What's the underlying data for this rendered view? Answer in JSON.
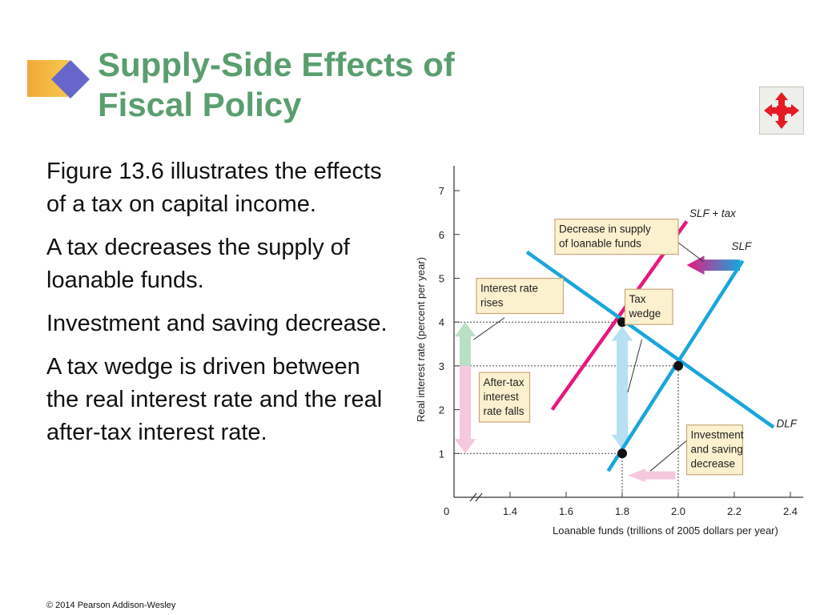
{
  "title_lines": [
    "Supply-Side Effects of",
    "Fiscal Policy"
  ],
  "bullets": [
    "Figure 13.6 illustrates the effects of a tax on capital income.",
    "A tax decreases the supply of loanable funds.",
    "Investment and saving decrease.",
    "A tax wedge is driven between the real interest rate and the real after-tax interest rate."
  ],
  "copyright": "© 2014 Pearson Addison-Wesley",
  "nav_icon": "four-way-arrows-icon",
  "colors": {
    "title": "#5a9e6f",
    "slf": "#19a6dc",
    "dlf": "#19a6dc",
    "slf_tax": "#e8177e",
    "annotation_fill": "#fbf1cf",
    "annotation_border": "#c9a77a",
    "up_arrow": "#b9dfc4",
    "down_arrow": "#f6c8dd",
    "wedge_arrow": "#b7e1f3",
    "icon_red": "#e41b23"
  },
  "chart_data": {
    "type": "line",
    "xlabel": "Loanable funds (trillions of 2005 dollars per year)",
    "ylabel": "Real interest rate (percent per year)",
    "xlim": [
      1.2,
      2.45
    ],
    "ylim": [
      0,
      7.3
    ],
    "origin_label": "0",
    "x_ticks": [
      1.4,
      1.6,
      1.8,
      2.0,
      2.2,
      2.4
    ],
    "x_tick_labels": [
      "1.4",
      "1.6",
      "1.8",
      "2.0",
      "2.2",
      "2.4"
    ],
    "y_ticks": [
      1,
      2,
      3,
      4,
      5,
      6,
      7
    ],
    "y_tick_labels": [
      "1",
      "2",
      "3",
      "4",
      "5",
      "6",
      "7"
    ],
    "grid": false,
    "series": [
      {
        "name": "SLF + tax",
        "color": "#e8177e",
        "x": [
          1.55,
          2.03
        ],
        "y": [
          2.0,
          6.3
        ]
      },
      {
        "name": "SLF",
        "color": "#19a6dc",
        "x": [
          1.75,
          2.23
        ],
        "y": [
          0.6,
          5.4
        ]
      },
      {
        "name": "DLF",
        "color": "#19a6dc",
        "x": [
          1.46,
          2.34
        ],
        "y": [
          5.6,
          1.6
        ]
      }
    ],
    "points": [
      {
        "x": 1.8,
        "y": 4
      },
      {
        "x": 2.0,
        "y": 3
      },
      {
        "x": 1.8,
        "y": 1
      }
    ],
    "guides": [
      {
        "from": [
          1.2,
          4
        ],
        "to": [
          1.8,
          4
        ]
      },
      {
        "from": [
          1.2,
          3
        ],
        "to": [
          2.0,
          3
        ]
      },
      {
        "from": [
          1.2,
          1
        ],
        "to": [
          1.8,
          1
        ]
      },
      {
        "from": [
          1.8,
          0
        ],
        "to": [
          1.8,
          4
        ]
      },
      {
        "from": [
          2.0,
          0
        ],
        "to": [
          2.0,
          3
        ]
      }
    ],
    "arrows": [
      {
        "kind": "left",
        "color": "#e8177e",
        "color2": "#19a6dc",
        "x": [
          2.22,
          2.03
        ],
        "y": 5.3
      },
      {
        "kind": "up",
        "color": "#b9dfc4",
        "x": 1.24,
        "y": [
          3.0,
          4.0
        ]
      },
      {
        "kind": "down",
        "color": "#f6c8dd",
        "x": 1.24,
        "y": [
          3.0,
          1.0
        ]
      },
      {
        "kind": "double",
        "color": "#b7e1f3",
        "x": 1.8,
        "y": [
          1.1,
          3.9
        ]
      },
      {
        "kind": "left",
        "color": "#f6c8dd",
        "color2": "#f6c8dd",
        "x": [
          1.99,
          1.82
        ],
        "y": 0.5
      }
    ],
    "annotations": [
      {
        "lines": [
          "Decrease in supply",
          "of loanable funds"
        ],
        "box": [
          1.56,
          6.35,
          2.0
        ],
        "pointer": [
          [
            1.92,
            6.2
          ],
          [
            2.09,
            5.38
          ]
        ]
      },
      {
        "lines": [
          "Interest rate",
          "rises"
        ],
        "box": [
          1.28,
          5.0,
          1.59
        ],
        "pointer": [
          [
            1.38,
            4.1
          ],
          [
            1.27,
            3.6
          ]
        ]
      },
      {
        "lines": [
          "Tax",
          "wedge"
        ],
        "box": [
          1.81,
          4.75,
          1.98
        ],
        "pointer": [
          [
            1.87,
            3.6
          ],
          [
            1.82,
            2.4
          ]
        ]
      },
      {
        "lines": [
          "After-tax",
          "interest",
          "rate falls"
        ],
        "box": [
          1.29,
          2.85,
          1.47
        ],
        "pointer": null
      },
      {
        "lines": [
          "Investment",
          "and saving",
          "decrease"
        ],
        "box": [
          2.03,
          1.65,
          2.23
        ],
        "pointer": [
          [
            2.05,
            1.4
          ],
          [
            1.9,
            0.6
          ]
        ]
      }
    ],
    "labels": [
      {
        "text": "SLF + tax",
        "x": 2.04,
        "y": 6.4
      },
      {
        "text": "SLF",
        "x": 2.19,
        "y": 5.65
      },
      {
        "text": "DLF",
        "x": 2.35,
        "y": 1.6
      }
    ]
  }
}
